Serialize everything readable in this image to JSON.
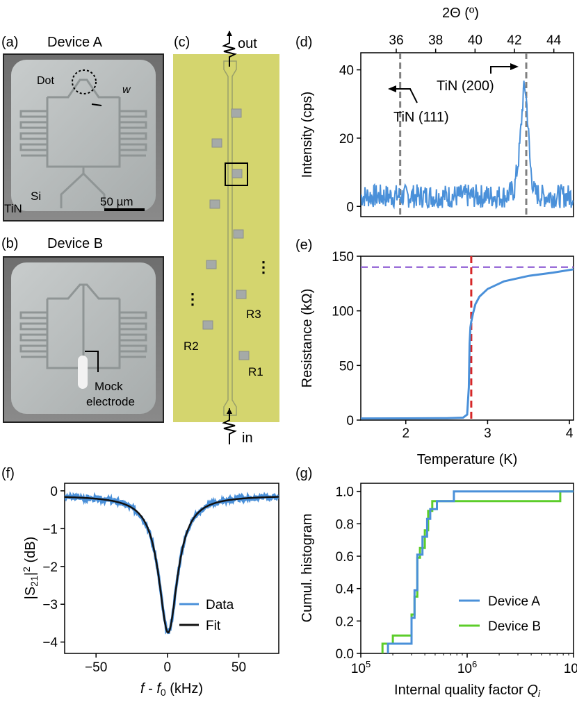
{
  "panels": {
    "a": {
      "letter": "(a)",
      "title": "Device A",
      "dot_label": "Dot",
      "w_label": "w",
      "si_label": "Si",
      "tin_label": "TiN",
      "scale_label": "50 µm"
    },
    "b": {
      "letter": "(b)",
      "title": "Device B",
      "mock_line1": "Mock",
      "mock_line2": "electrode"
    },
    "c": {
      "letter": "(c)",
      "out_label": "out",
      "in_label": "in",
      "r1": "R1",
      "r2": "R2",
      "r3": "R3",
      "dots": "⋮"
    },
    "d": {
      "letter": "(d)",
      "top_axis_label": "2Θ (º)",
      "ylabel": "Intensity (cps)",
      "peak1_label": "TiN (111)",
      "peak2_label": "TiN (200)"
    },
    "e": {
      "letter": "(e)",
      "xlabel": "Temperature (K)",
      "ylabel": "Resistance (kΩ)"
    },
    "f": {
      "letter": "(f)",
      "xlabel": "f - f0 (kHz)",
      "ylabel": "|S21|² (dB)",
      "legend_data": "Data",
      "legend_fit": "Fit"
    },
    "g": {
      "letter": "(g)",
      "xlabel": "Internal quality factor Qi",
      "ylabel": "Cumul. histogram",
      "legend_a": "Device A",
      "legend_b": "Device B"
    }
  },
  "colors": {
    "blue": "#4a90d9",
    "green": "#5ccd2a",
    "black": "#111111",
    "gray_dash": "#808080",
    "red_dash": "#d62728",
    "purple_dash": "#9b6fd8",
    "chip": "#d4d56e"
  },
  "chart_data": [
    {
      "id": "d",
      "type": "line",
      "title": "",
      "xlabel": "2Θ (º)",
      "ylabel": "Intensity (cps)",
      "xlim": [
        34.2,
        45
      ],
      "ylim": [
        -3,
        45
      ],
      "xticks": [
        36,
        38,
        40,
        42,
        44
      ],
      "yticks": [
        0,
        20,
        40
      ],
      "x": [
        34.2,
        35.0,
        36.0,
        37.0,
        38.0,
        39.0,
        40.0,
        41.0,
        41.6,
        42.0,
        42.25,
        42.45,
        42.55,
        42.65,
        42.8,
        43.0,
        43.4,
        44.0,
        45.0
      ],
      "series": [
        {
          "name": "XRD",
          "values": [
            3,
            3,
            3,
            3,
            3,
            3,
            3,
            3,
            3,
            5,
            16,
            33,
            35,
            28,
            12,
            4,
            3,
            3,
            3
          ]
        }
      ],
      "reference_lines": [
        {
          "x": 36.2,
          "label": "TiN (111)"
        },
        {
          "x": 42.6,
          "label": "TiN (200)"
        }
      ]
    },
    {
      "id": "e",
      "type": "line",
      "xlabel": "Temperature (K)",
      "ylabel": "Resistance (kΩ)",
      "xlim": [
        1.45,
        4.05
      ],
      "ylim": [
        0,
        150
      ],
      "xticks": [
        2,
        3,
        4
      ],
      "yticks": [
        0,
        50,
        100,
        150
      ],
      "x": [
        1.45,
        2.0,
        2.5,
        2.7,
        2.75,
        2.77,
        2.78,
        2.79,
        2.8,
        2.82,
        2.85,
        2.9,
        3.0,
        3.2,
        3.5,
        3.8,
        4.05
      ],
      "series": [
        {
          "name": "R(T)",
          "values": [
            1.5,
            1.6,
            1.8,
            2.2,
            5,
            30,
            70,
            85,
            90,
            97,
            106,
            113,
            120,
            127,
            132,
            135,
            138
          ]
        }
      ],
      "vline": 2.8,
      "hline": 140
    },
    {
      "id": "f",
      "type": "line",
      "xlabel": "f - f0 (kHz)",
      "ylabel": "|S21|² (dB)",
      "xlim": [
        -72,
        78
      ],
      "ylim": [
        -4.3,
        0.2
      ],
      "xticks": [
        -50,
        0,
        50
      ],
      "yticks": [
        0,
        -1,
        -2,
        -3,
        -4
      ],
      "fit": {
        "model": "lorentzian",
        "dip_depth_dB": -3.75,
        "center_kHz": 0.5,
        "halfwidth_kHz": 8.0,
        "baseline_dB": -0.12
      },
      "x": [
        -72,
        -50,
        -30,
        -20,
        -10,
        -5,
        0,
        5,
        10,
        20,
        30,
        50,
        78
      ],
      "series": [
        {
          "name": "Data",
          "values": [
            -0.2,
            -0.27,
            -0.46,
            -0.75,
            -1.63,
            -2.79,
            -3.85,
            -2.95,
            -1.73,
            -0.73,
            -0.44,
            -0.28,
            -0.2
          ]
        },
        {
          "name": "Fit",
          "values": [
            -0.17,
            -0.23,
            -0.41,
            -0.71,
            -1.55,
            -2.76,
            -3.75,
            -2.76,
            -1.55,
            -0.71,
            -0.41,
            -0.23,
            -0.17
          ]
        }
      ]
    },
    {
      "id": "g",
      "type": "line",
      "xlabel": "Internal quality factor Qi",
      "ylabel": "Cumul. histogram",
      "xscale": "log",
      "xlim": [
        100000,
        10000000
      ],
      "ylim": [
        0,
        1.05
      ],
      "xticks": [
        "10^5",
        "10^6",
        "10^7"
      ],
      "yticks": [
        0.0,
        0.2,
        0.4,
        0.6,
        0.8,
        1.0
      ],
      "series": [
        {
          "name": "Device A",
          "x": [
            180000,
            230000,
            300000,
            320000,
            340000,
            360000,
            380000,
            420000,
            450000,
            520000,
            750000,
            10000000
          ],
          "values": [
            0.06,
            0.06,
            0.22,
            0.39,
            0.61,
            0.61,
            0.72,
            0.83,
            0.89,
            0.94,
            1.0,
            1.0
          ]
        },
        {
          "name": "Device B",
          "x": [
            160000,
            200000,
            300000,
            320000,
            340000,
            360000,
            400000,
            430000,
            470000,
            520000,
            7500000,
            10000000
          ],
          "values": [
            0.06,
            0.11,
            0.24,
            0.35,
            0.59,
            0.65,
            0.76,
            0.88,
            0.94,
            0.94,
            1.0,
            1.0
          ]
        }
      ]
    }
  ]
}
